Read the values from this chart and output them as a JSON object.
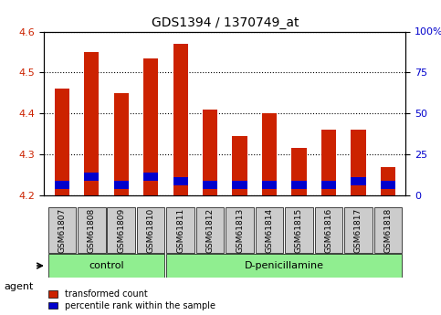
{
  "title": "GDS1394 / 1370749_at",
  "samples": [
    "GSM61807",
    "GSM61808",
    "GSM61809",
    "GSM61810",
    "GSM61811",
    "GSM61812",
    "GSM61813",
    "GSM61814",
    "GSM61815",
    "GSM61816",
    "GSM61817",
    "GSM61818"
  ],
  "transformed_count": [
    4.46,
    4.55,
    4.45,
    4.535,
    4.57,
    4.41,
    4.345,
    4.4,
    4.315,
    4.36,
    4.36,
    4.27
  ],
  "percentile_bottom": [
    4.215,
    4.235,
    4.215,
    4.235,
    4.225,
    4.215,
    4.215,
    4.215,
    4.215,
    4.215,
    4.225,
    4.215
  ],
  "percentile_top": [
    4.235,
    4.255,
    4.235,
    4.255,
    4.245,
    4.235,
    4.235,
    4.235,
    4.235,
    4.235,
    4.245,
    4.235
  ],
  "ylim_left": [
    4.2,
    4.6
  ],
  "ylim_right": [
    0,
    100
  ],
  "yticks_left": [
    4.2,
    4.3,
    4.4,
    4.5,
    4.6
  ],
  "yticks_right": [
    0,
    25,
    50,
    75,
    100
  ],
  "bar_bottom": 4.2,
  "red_color": "#CC2200",
  "blue_color": "#0000CC",
  "control_group": [
    "GSM61807",
    "GSM61808",
    "GSM61809",
    "GSM61810"
  ],
  "dpen_group": [
    "GSM61811",
    "GSM61812",
    "GSM61813",
    "GSM61814",
    "GSM61815",
    "GSM61816",
    "GSM61817",
    "GSM61818"
  ],
  "control_label": "control",
  "dpen_label": "D-penicillamine",
  "agent_label": "agent",
  "legend1": "transformed count",
  "legend2": "percentile rank within the sample",
  "bg_color": "#FFFFFF",
  "plot_bg_color": "#FFFFFF",
  "tick_label_color_left": "#CC2200",
  "tick_label_color_right": "#0000CC",
  "bar_width": 0.5,
  "group_bg_control": "#90EE90",
  "group_bg_dpen": "#90EE90",
  "xticklabel_bg": "#CCCCCC"
}
